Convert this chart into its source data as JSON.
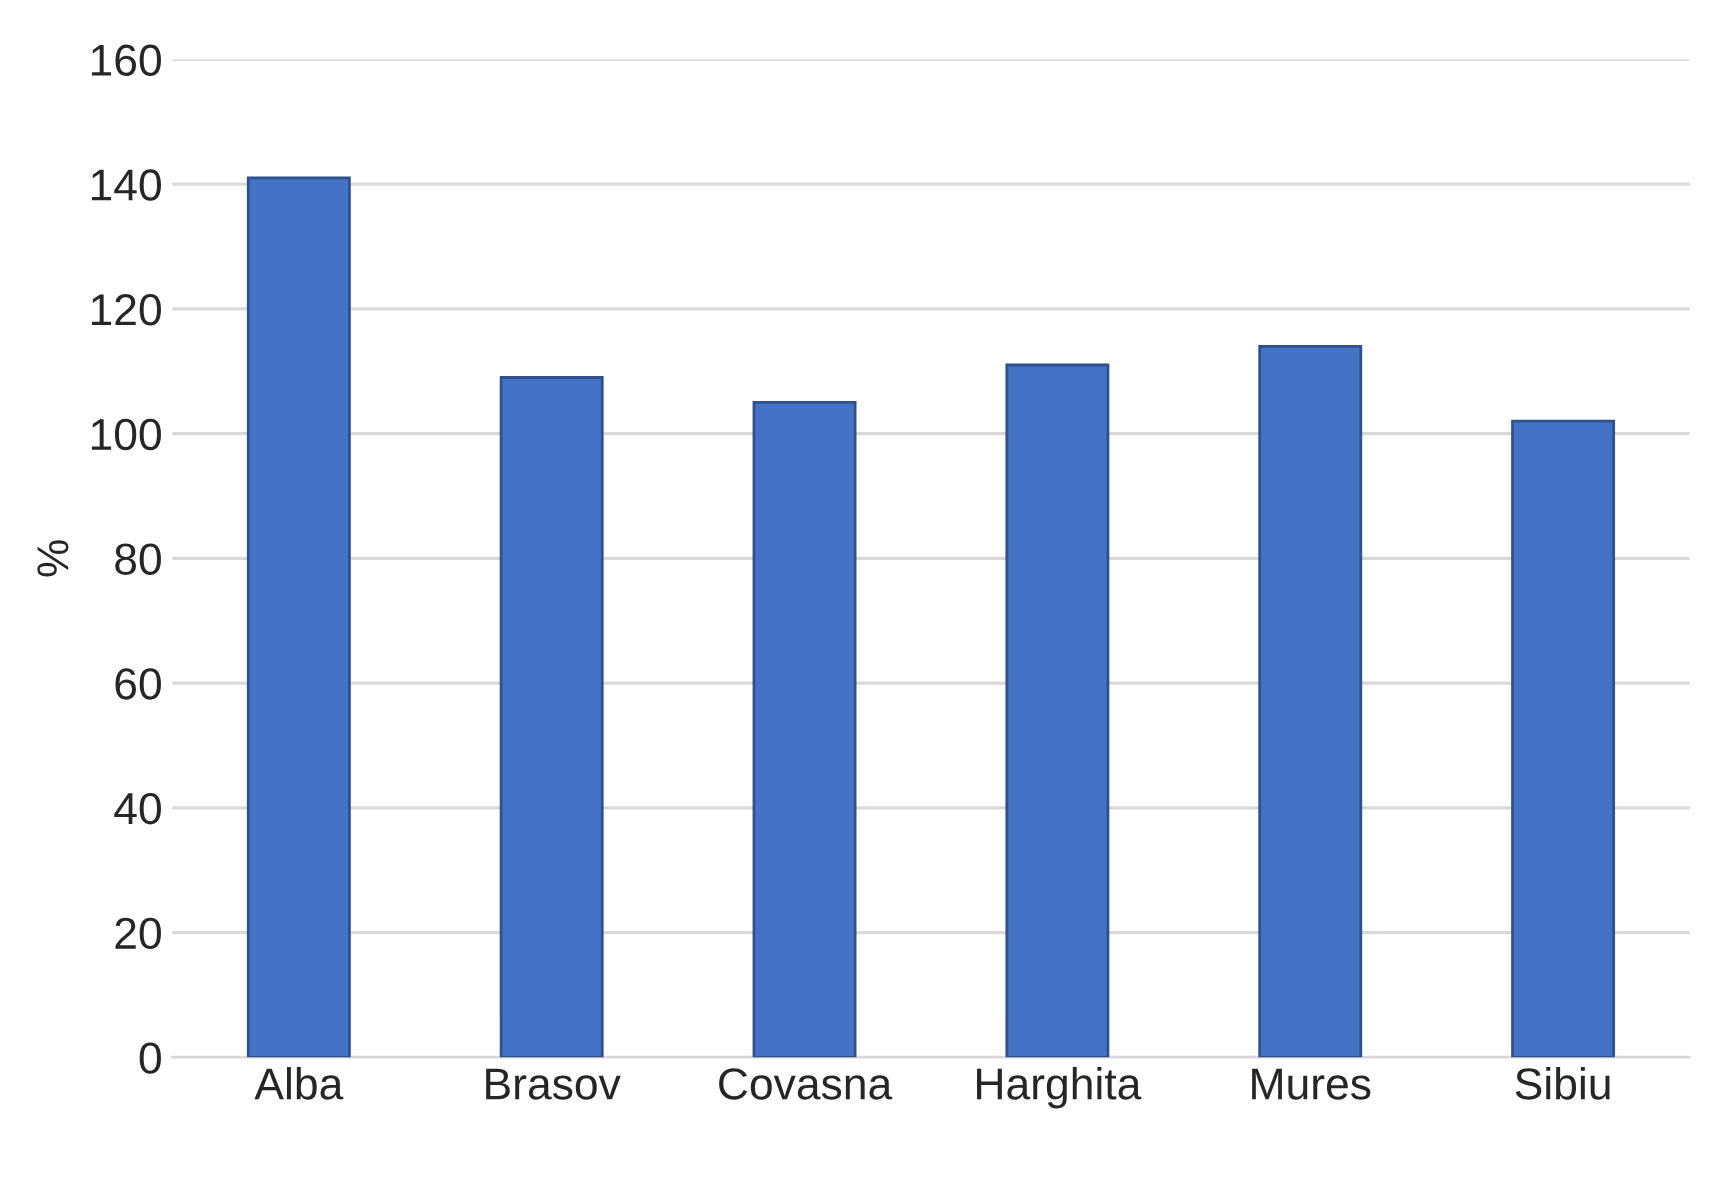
{
  "chart_data": {
    "type": "bar",
    "ylabel": "%",
    "categories": [
      "Alba",
      "Brasov",
      "Covasna",
      "Harghita",
      "Mures",
      "Sibiu"
    ],
    "values": [
      141,
      109,
      105,
      111,
      114,
      102
    ],
    "color": "#4472c4",
    "ylim": [
      0,
      160
    ],
    "yticks": [
      0,
      20,
      40,
      60,
      80,
      100,
      120,
      140,
      160
    ],
    "grid": "y"
  }
}
